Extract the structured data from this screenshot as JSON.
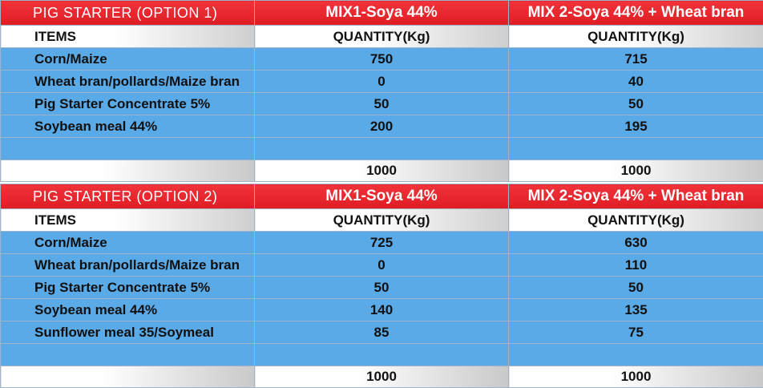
{
  "tables": [
    {
      "title": "PIG STARTER (OPTION 1)",
      "mix1_title": "MIX1-Soya 44%",
      "mix2_title": "MIX 2-Soya 44% + Wheat bran",
      "items_header": "ITEMS",
      "qty_header_1": "QUANTITY(Kg)",
      "qty_header_2": "QUANTITY(Kg)",
      "rows": [
        {
          "item": "Corn/Maize",
          "mix1": "750",
          "mix2": "715"
        },
        {
          "item": "Wheat bran/pollards/Maize bran",
          "mix1": "0",
          "mix2": "40"
        },
        {
          "item": "Pig Starter Concentrate 5%",
          "mix1": "50",
          "mix2": "50"
        },
        {
          "item": "Soybean meal 44%",
          "mix1": "200",
          "mix2": "195"
        }
      ],
      "total_1": "1000",
      "total_2": "1000"
    },
    {
      "title": "PIG STARTER (OPTION 2)",
      "mix1_title": "MIX1-Soya 44%",
      "mix2_title": "MIX 2-Soya 44% + Wheat bran",
      "items_header": "ITEMS",
      "qty_header_1": "QUANTITY(Kg)",
      "qty_header_2": "QUANTITY(Kg)",
      "rows": [
        {
          "item": "Corn/Maize",
          "mix1": "725",
          "mix2": "630"
        },
        {
          "item": "Wheat bran/pollards/Maize bran",
          "mix1": "0",
          "mix2": "110"
        },
        {
          "item": "Pig Starter Concentrate 5%",
          "mix1": "50",
          "mix2": "50"
        },
        {
          "item": "Soybean meal 44%",
          "mix1": "140",
          "mix2": "135"
        },
        {
          "item": "Sunflower meal 35/Soymeal",
          "mix1": "85",
          "mix2": "75"
        }
      ],
      "total_1": "1000",
      "total_2": "1000"
    }
  ],
  "colors": {
    "title_red": "#de1c24",
    "row_blue": "#5aaae8",
    "header_white": "#ffffff"
  }
}
